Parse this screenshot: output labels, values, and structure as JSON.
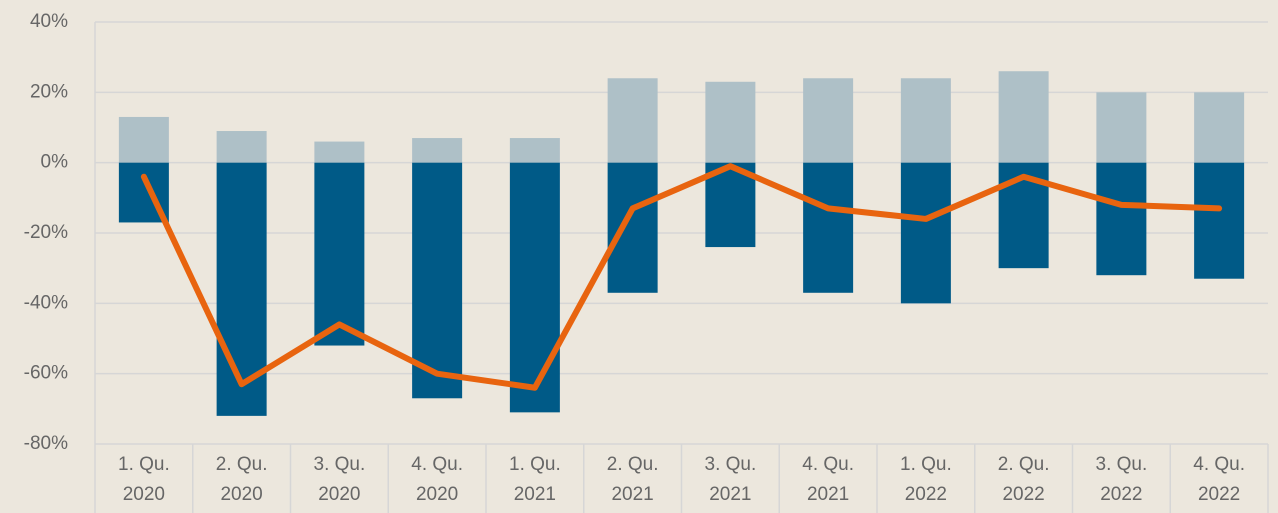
{
  "chart_data": {
    "type": "bar",
    "categories": [
      "1. Qu. 2020",
      "2. Qu. 2020",
      "3. Qu. 2020",
      "4. Qu. 2020",
      "1. Qu. 2021",
      "2. Qu. 2021",
      "3. Qu. 2021",
      "4. Qu. 2021",
      "1. Qu. 2022",
      "2. Qu. 2022",
      "3. Qu. 2022",
      "4. Qu. 2022"
    ],
    "series": [
      {
        "type": "bar",
        "color": "#aec0c7",
        "values": [
          13,
          9,
          6,
          7,
          7,
          24,
          23,
          24,
          24,
          26,
          20,
          20
        ]
      },
      {
        "type": "bar",
        "color": "#005a87",
        "values": [
          -17,
          -72,
          -52,
          -67,
          -71,
          -37,
          -24,
          -37,
          -40,
          -30,
          -32,
          -33
        ]
      },
      {
        "type": "line",
        "color": "#e8640f",
        "values": [
          -4,
          -63,
          -46,
          -60,
          -64,
          -13,
          -1,
          -13,
          -16,
          -4,
          -12,
          -13
        ]
      }
    ],
    "ylim": [
      -80,
      40
    ],
    "yticks": [
      {
        "value": -80,
        "label": "-80%"
      },
      {
        "value": -60,
        "label": "-60%"
      },
      {
        "value": -40,
        "label": "-40%"
      },
      {
        "value": -20,
        "label": "-20%"
      },
      {
        "value": 0,
        "label": "0%"
      },
      {
        "value": 20,
        "label": "20%"
      },
      {
        "value": 40,
        "label": "40%"
      }
    ],
    "grid": true
  }
}
